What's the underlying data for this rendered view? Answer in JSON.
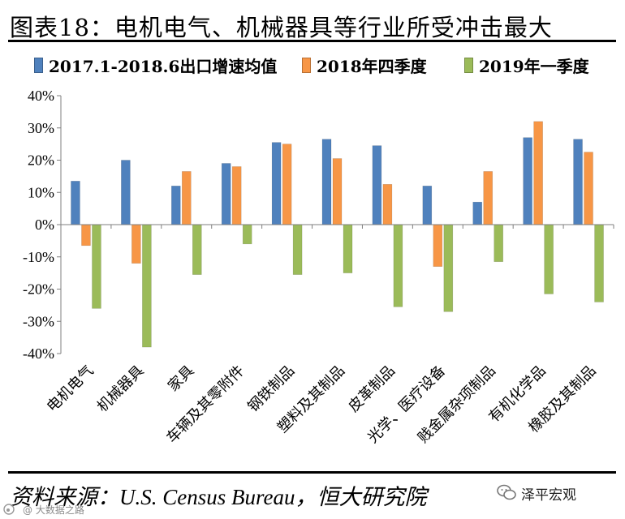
{
  "header": {
    "title": "图表18：电机电气、机械器具等行业所受冲击最大"
  },
  "colors": {
    "series_1": "#4f81bd",
    "series_2": "#f79646",
    "series_3": "#9bbb59",
    "text": "#000000",
    "gridline": "#808080"
  },
  "chart_data": {
    "type": "bar",
    "title": "电机电气、机械器具等行业所受冲击最大",
    "xlabel": "",
    "ylabel": "",
    "ylim": [
      -40,
      40
    ],
    "yticks": [
      -40,
      -30,
      -20,
      -10,
      0,
      10,
      20,
      30,
      40
    ],
    "ytick_labels": [
      "-40%",
      "-30%",
      "-20%",
      "-10%",
      "0%",
      "10%",
      "20%",
      "30%",
      "40%"
    ],
    "legend_position": "top",
    "categories": [
      "电机电气",
      "机械器具",
      "家具",
      "车辆及其零附件",
      "钢铁制品",
      "塑料及其制品",
      "皮革制品",
      "光学、医疗设备",
      "贱金属杂项制品",
      "有机化学品",
      "橡胶及其制品"
    ],
    "series": [
      {
        "name": "2017.1-2018.6出口增速均值",
        "color": "#4f81bd",
        "values": [
          13.5,
          20,
          12,
          19,
          25.5,
          26.5,
          24.5,
          12,
          7,
          27,
          26.5
        ]
      },
      {
        "name": "2018年四季度",
        "color": "#f79646",
        "values": [
          -6.5,
          -12,
          16.5,
          18,
          25,
          20.5,
          12.5,
          -13,
          16.5,
          32,
          22.5
        ]
      },
      {
        "name": "2019年一季度",
        "color": "#9bbb59",
        "values": [
          -26,
          -38,
          -15.5,
          -6,
          -15.5,
          -15,
          -25.5,
          -27,
          -11.5,
          -21.5,
          -24
        ]
      }
    ]
  },
  "source": {
    "text": "资料来源：U.S. Census Bureau，恒大研究院"
  },
  "watermark": {
    "brand": "泽平宏观",
    "corner": "@ 大数据之路"
  }
}
